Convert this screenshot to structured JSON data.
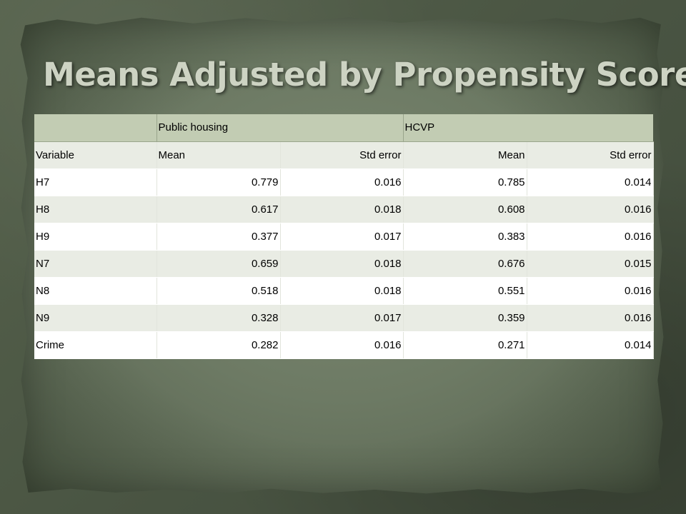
{
  "slide": {
    "title": "Means Adjusted by Propensity Scores"
  },
  "table": {
    "group_header": [
      "",
      "Public housing",
      "",
      "HCVP",
      ""
    ],
    "column_header": [
      "Variable",
      "Mean",
      "Std error",
      "Mean",
      "Std error"
    ],
    "rows": [
      [
        "H7",
        "0.779",
        "0.016",
        "0.785",
        "0.014"
      ],
      [
        "H8",
        "0.617",
        "0.018",
        "0.608",
        "0.016"
      ],
      [
        "H9",
        "0.377",
        "0.017",
        "0.383",
        "0.016"
      ],
      [
        "N7",
        "0.659",
        "0.018",
        "0.676",
        "0.015"
      ],
      [
        "N8",
        "0.518",
        "0.018",
        "0.551",
        "0.016"
      ],
      [
        "N9",
        "0.328",
        "0.017",
        "0.359",
        "0.016"
      ],
      [
        "Crime",
        "0.282",
        "0.016",
        "0.271",
        "0.014"
      ]
    ]
  },
  "colors": {
    "background": "#4e5a46",
    "paper": "#6d7a64",
    "title_text": "#cdd3c3",
    "header_fill": "#c2ccb3",
    "row_odd": "#ffffff",
    "row_even": "#e9ece4"
  }
}
